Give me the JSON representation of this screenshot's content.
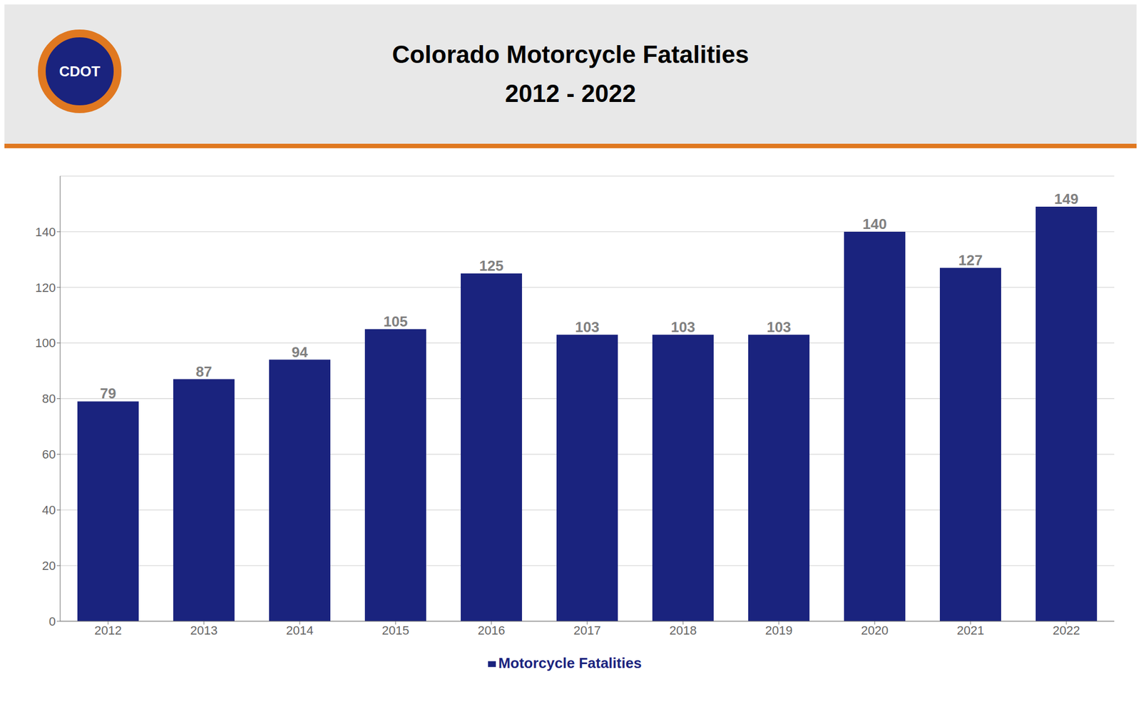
{
  "chart_data": {
    "type": "bar",
    "title": "Colorado Motorcycle Fatalities",
    "subtitle": "2012 - 2022",
    "annotations": [
      "CDOT"
    ],
    "categories": [
      "2012",
      "2013",
      "2014",
      "2015",
      "2016",
      "2017",
      "2018",
      "2019",
      "2020",
      "2021",
      "2022"
    ],
    "series": [
      {
        "name": "Motorcycle Fatalities",
        "color": "#1a237e",
        "values": [
          79,
          87,
          94,
          105,
          125,
          103,
          103,
          103,
          140,
          127,
          149
        ]
      }
    ],
    "ylim": [
      0,
      160
    ],
    "yticks": [
      0,
      20,
      40,
      60,
      80,
      100,
      120,
      140
    ],
    "grid": true,
    "legend": "bottom",
    "data_labels": true
  }
}
